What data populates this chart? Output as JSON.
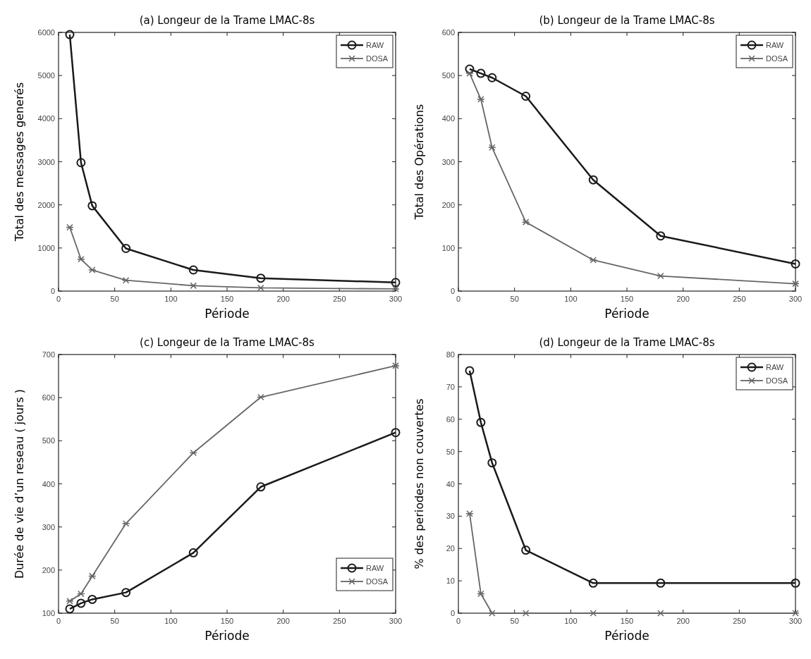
{
  "chart_data": [
    {
      "type": "line",
      "title": "(a) Longeur de la Trame LMAC-8s",
      "xlabel": "Période",
      "ylabel": "Total des messages generés",
      "x": [
        10,
        20,
        30,
        60,
        120,
        180,
        300
      ],
      "xlim": [
        0,
        300
      ],
      "xticks": [
        0,
        50,
        100,
        150,
        200,
        250,
        300
      ],
      "ylim": [
        0,
        6000
      ],
      "yticks": [
        0,
        1000,
        2000,
        3000,
        4000,
        5000,
        6000
      ],
      "legend": "top right",
      "grid": false,
      "series": [
        {
          "name": "RAW",
          "color": "#1a1a1a",
          "marker": "circle",
          "values": [
            5950,
            2980,
            1980,
            990,
            490,
            300,
            200
          ]
        },
        {
          "name": "DOSA",
          "color": "#666666",
          "marker": "cross",
          "values": [
            1480,
            740,
            490,
            250,
            125,
            75,
            50
          ]
        }
      ]
    },
    {
      "type": "line",
      "title": "(b) Longeur de la Trame LMAC-8s",
      "xlabel": "Période",
      "ylabel": "Total des Opérations",
      "x": [
        10,
        20,
        30,
        60,
        120,
        180,
        300
      ],
      "xlim": [
        0,
        300
      ],
      "xticks": [
        0,
        50,
        100,
        150,
        200,
        250,
        300
      ],
      "ylim": [
        0,
        600
      ],
      "yticks": [
        0,
        100,
        200,
        300,
        400,
        500,
        600
      ],
      "legend": "top right",
      "grid": false,
      "series": [
        {
          "name": "RAW",
          "color": "#1a1a1a",
          "marker": "circle",
          "values": [
            515,
            505,
            495,
            452,
            258,
            128,
            63
          ]
        },
        {
          "name": "DOSA",
          "color": "#666666",
          "marker": "cross",
          "values": [
            505,
            445,
            333,
            160,
            72,
            35,
            17
          ]
        }
      ]
    },
    {
      "type": "line",
      "title": "(c) Longeur de la Trame LMAC-8s",
      "xlabel": "Période",
      "ylabel": "Durée de vie d’un reseau ( jours )",
      "x": [
        10,
        20,
        30,
        60,
        120,
        180,
        300
      ],
      "xlim": [
        0,
        300
      ],
      "xticks": [
        0,
        50,
        100,
        150,
        200,
        250,
        300
      ],
      "ylim": [
        100,
        700
      ],
      "yticks": [
        100,
        200,
        300,
        400,
        500,
        600,
        700
      ],
      "legend": "bottom right",
      "grid": false,
      "series": [
        {
          "name": "RAW",
          "color": "#1a1a1a",
          "marker": "circle",
          "values": [
            110,
            123,
            132,
            148,
            240,
            393,
            519
          ]
        },
        {
          "name": "DOSA",
          "color": "#666666",
          "marker": "cross",
          "values": [
            128,
            145,
            186,
            308,
            472,
            601,
            674
          ]
        }
      ]
    },
    {
      "type": "line",
      "title": "(d) Longeur de la Trame LMAC-8s",
      "xlabel": "Période",
      "ylabel": "% des periodes non couvertes",
      "x": [
        10,
        20,
        30,
        60,
        120,
        180,
        300
      ],
      "xlim": [
        0,
        300
      ],
      "xticks": [
        0,
        50,
        100,
        150,
        200,
        250,
        300
      ],
      "ylim": [
        0,
        80
      ],
      "yticks": [
        0,
        10,
        20,
        30,
        40,
        50,
        60,
        70,
        80
      ],
      "legend": "top right",
      "grid": false,
      "series": [
        {
          "name": "RAW",
          "color": "#1a1a1a",
          "marker": "circle",
          "values": [
            75,
            59,
            46.5,
            19.5,
            9.3,
            9.3,
            9.3
          ]
        },
        {
          "name": "DOSA",
          "color": "#666666",
          "marker": "cross",
          "values": [
            30.8,
            6,
            0,
            0,
            0,
            0,
            0
          ]
        }
      ]
    }
  ]
}
